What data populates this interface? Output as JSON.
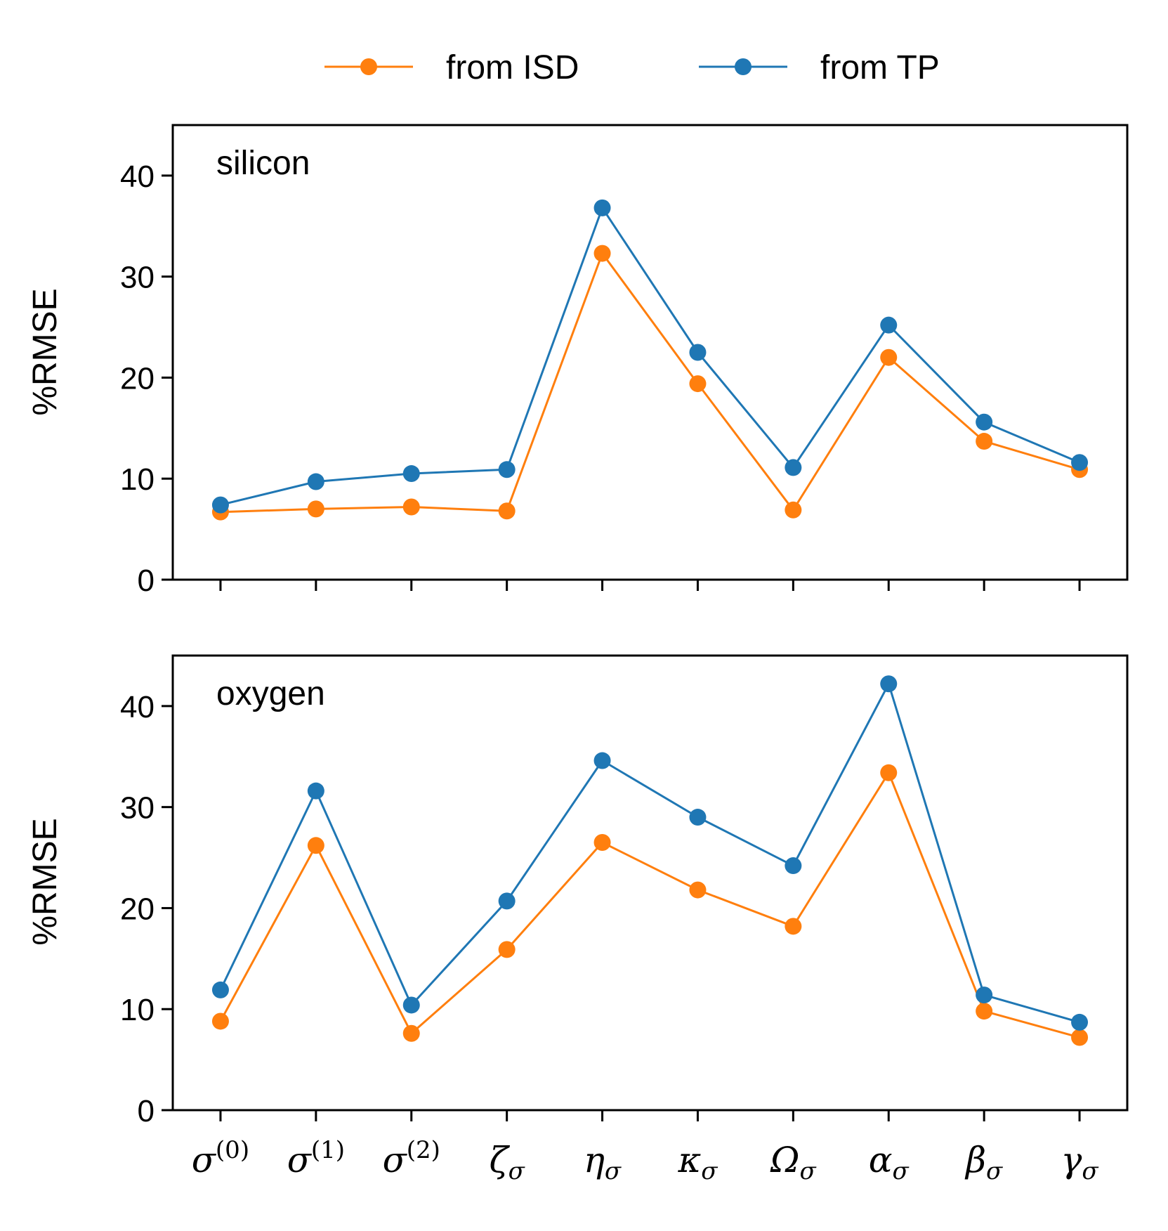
{
  "legend": {
    "items": [
      {
        "label": "from ISD",
        "color": "#ff7f0e"
      },
      {
        "label": "from TP",
        "color": "#1f77b4"
      }
    ]
  },
  "chart_data": [
    {
      "type": "line",
      "panel_label": "silicon",
      "ylabel": "%RMSE",
      "ylim": [
        0,
        45
      ],
      "yticks": [
        0,
        10,
        20,
        30,
        40
      ],
      "categories": [
        {
          "base": "σ",
          "sup": "(0)"
        },
        {
          "base": "σ",
          "sup": "(1)"
        },
        {
          "base": "σ",
          "sup": "(2)"
        },
        {
          "base": "ζ",
          "sub": "σ"
        },
        {
          "base": "η",
          "sub": "σ"
        },
        {
          "base": "κ",
          "sub": "σ"
        },
        {
          "base": "Ω",
          "sub": "σ"
        },
        {
          "base": "α",
          "sub": "σ"
        },
        {
          "base": "β",
          "sub": "σ"
        },
        {
          "base": "γ",
          "sub": "σ"
        }
      ],
      "show_xticklabels": false,
      "series": [
        {
          "name": "from ISD",
          "color": "#ff7f0e",
          "values": [
            6.7,
            7.0,
            7.2,
            6.8,
            32.3,
            19.4,
            6.9,
            22.0,
            13.7,
            10.9
          ]
        },
        {
          "name": "from TP",
          "color": "#1f77b4",
          "values": [
            7.4,
            9.7,
            10.5,
            10.9,
            36.8,
            22.5,
            11.1,
            25.2,
            15.6,
            11.6
          ]
        }
      ]
    },
    {
      "type": "line",
      "panel_label": "oxygen",
      "ylabel": "%RMSE",
      "ylim": [
        0,
        45
      ],
      "yticks": [
        0,
        10,
        20,
        30,
        40
      ],
      "categories": [
        {
          "base": "σ",
          "sup": "(0)"
        },
        {
          "base": "σ",
          "sup": "(1)"
        },
        {
          "base": "σ",
          "sup": "(2)"
        },
        {
          "base": "ζ",
          "sub": "σ"
        },
        {
          "base": "η",
          "sub": "σ"
        },
        {
          "base": "κ",
          "sub": "σ"
        },
        {
          "base": "Ω",
          "sub": "σ"
        },
        {
          "base": "α",
          "sub": "σ"
        },
        {
          "base": "β",
          "sub": "σ"
        },
        {
          "base": "γ",
          "sub": "σ"
        }
      ],
      "show_xticklabels": true,
      "series": [
        {
          "name": "from ISD",
          "color": "#ff7f0e",
          "values": [
            8.8,
            26.2,
            7.6,
            15.9,
            26.5,
            21.8,
            18.2,
            33.4,
            9.8,
            7.2
          ]
        },
        {
          "name": "from TP",
          "color": "#1f77b4",
          "values": [
            11.9,
            31.6,
            10.4,
            20.7,
            34.6,
            29.0,
            24.2,
            42.2,
            11.4,
            8.7
          ]
        }
      ]
    }
  ]
}
